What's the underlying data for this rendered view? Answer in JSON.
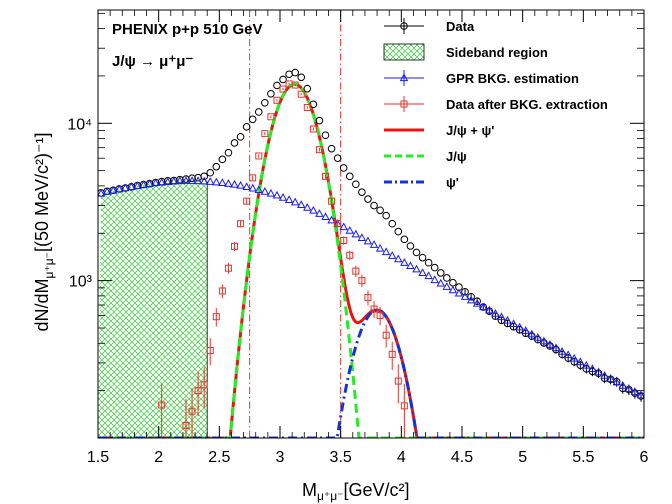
{
  "chart_data": {
    "type": "line",
    "title": "PHENIX p+p 510 GeV",
    "subtitle": "J/ψ → μ⁺μ⁻",
    "xlabel_main": "M",
    "xlabel_sub": "μ⁺μ⁻",
    "xlabel_unit": "[GeV/c²]",
    "ylabel_main": "dN/dM",
    "ylabel_sub": "μ⁺μ⁻",
    "ylabel_unit": "[(50 MeV/c²)⁻¹]",
    "xlim": [
      1.5,
      6.0
    ],
    "ylim_log10": [
      2.0,
      4.72
    ],
    "y_scale": "log",
    "grid": false,
    "legend_position": "top-right",
    "x_ticks": [
      1.5,
      2.0,
      2.5,
      3.0,
      3.5,
      4.0,
      4.5,
      5.0,
      5.5,
      6.0
    ],
    "x_tick_labels": [
      "1.5",
      "2",
      "2.5",
      "3",
      "3.5",
      "4",
      "4.5",
      "5",
      "5.5",
      "6"
    ],
    "y_ticks": [
      10000,
      1000
    ],
    "y_tick_labels": [
      "10⁴",
      "10³"
    ],
    "sideband_region": [
      1.5,
      2.4
    ],
    "vertical_lines": [
      2.75,
      3.5
    ],
    "colors": {
      "data": "#000000",
      "sideband": "#33cc33",
      "gpr": "#1a1aff",
      "extracted": "#e8332a",
      "total_fit": "#ee1111",
      "jpsi_fit": "#22ee22",
      "psi2s_fit": "#1133dd",
      "vlines": "#e8332a"
    },
    "legend": [
      {
        "key": "data",
        "label": "Data"
      },
      {
        "key": "sideband",
        "label": "Sideband region"
      },
      {
        "key": "gpr",
        "label": "GPR BKG. estimation"
      },
      {
        "key": "extracted",
        "label": "Data after BKG. extraction"
      },
      {
        "key": "total_fit",
        "label": "J/ψ + ψ'"
      },
      {
        "key": "jpsi_fit",
        "label": "J/ψ"
      },
      {
        "key": "psi2s_fit",
        "label": "ψ'"
      }
    ],
    "series": [
      {
        "key": "data",
        "name": "Data",
        "x": [
          1.525,
          1.575,
          1.625,
          1.675,
          1.725,
          1.775,
          1.825,
          1.875,
          1.925,
          1.975,
          2.025,
          2.075,
          2.125,
          2.175,
          2.225,
          2.275,
          2.325,
          2.375,
          2.425,
          2.475,
          2.525,
          2.575,
          2.625,
          2.675,
          2.725,
          2.775,
          2.825,
          2.875,
          2.925,
          2.975,
          3.025,
          3.075,
          3.125,
          3.175,
          3.225,
          3.275,
          3.325,
          3.375,
          3.425,
          3.475,
          3.525,
          3.575,
          3.625,
          3.675,
          3.725,
          3.775,
          3.825,
          3.875,
          3.925,
          3.975,
          4.025,
          4.075,
          4.125,
          4.175,
          4.225,
          4.275,
          4.325,
          4.375,
          4.425,
          4.475,
          4.525,
          4.575,
          4.625,
          4.675,
          4.725,
          4.775,
          4.825,
          4.875,
          4.925,
          4.975,
          5.025,
          5.075,
          5.125,
          5.175,
          5.225,
          5.275,
          5.325,
          5.375,
          5.425,
          5.475,
          5.525,
          5.575,
          5.625,
          5.675,
          5.725,
          5.775,
          5.825,
          5.875,
          5.925,
          5.975
        ],
        "y": [
          3610,
          3700,
          3750,
          3830,
          3880,
          3950,
          4020,
          4080,
          4130,
          4200,
          4260,
          4310,
          4330,
          4380,
          4420,
          4480,
          4510,
          4600,
          4850,
          5300,
          5900,
          6500,
          7500,
          8200,
          9500,
          10600,
          11800,
          13500,
          15400,
          17400,
          19000,
          20500,
          21000,
          19600,
          16600,
          13200,
          10400,
          8400,
          6900,
          6000,
          5200,
          4600,
          4100,
          3650,
          3300,
          3000,
          2800,
          2590,
          2300,
          2050,
          1830,
          1660,
          1510,
          1400,
          1300,
          1210,
          1120,
          1040,
          970,
          910,
          850,
          790,
          740,
          680,
          640,
          595,
          560,
          535,
          510,
          487,
          463,
          444,
          422,
          402,
          385,
          365,
          340,
          322,
          305,
          290,
          275,
          265,
          258,
          240,
          236,
          228,
          207,
          203,
          193,
          185
        ]
      },
      {
        "key": "gpr",
        "name": "GPR BKG. estimation",
        "x": [
          1.525,
          1.575,
          1.625,
          1.675,
          1.725,
          1.775,
          1.825,
          1.875,
          1.925,
          1.975,
          2.025,
          2.075,
          2.125,
          2.175,
          2.225,
          2.275,
          2.325,
          2.375,
          2.425,
          2.475,
          2.525,
          2.575,
          2.625,
          2.675,
          2.725,
          2.775,
          2.825,
          2.875,
          2.925,
          2.975,
          3.025,
          3.075,
          3.125,
          3.175,
          3.225,
          3.275,
          3.325,
          3.375,
          3.425,
          3.475,
          3.525,
          3.575,
          3.625,
          3.675,
          3.725,
          3.775,
          3.825,
          3.875,
          3.925,
          3.975,
          4.025,
          4.075,
          4.125,
          4.175,
          4.225,
          4.275,
          4.325,
          4.375,
          4.425,
          4.475,
          4.525,
          4.575,
          4.625,
          4.675,
          4.725,
          4.775,
          4.825,
          4.875,
          4.925,
          4.975,
          5.025,
          5.075,
          5.125,
          5.175,
          5.225,
          5.275,
          5.325,
          5.375,
          5.425,
          5.475,
          5.525,
          5.575,
          5.625,
          5.675,
          5.725,
          5.775,
          5.825,
          5.875,
          5.925,
          5.975
        ],
        "y": [
          3580,
          3670,
          3740,
          3810,
          3870,
          3940,
          4000,
          4060,
          4120,
          4170,
          4200,
          4240,
          4270,
          4300,
          4310,
          4310,
          4300,
          4280,
          4250,
          4220,
          4180,
          4130,
          4080,
          4020,
          3940,
          3860,
          3770,
          3680,
          3580,
          3480,
          3370,
          3260,
          3150,
          3030,
          2910,
          2790,
          2660,
          2540,
          2420,
          2300,
          2190,
          2080,
          1970,
          1870,
          1780,
          1690,
          1600,
          1520,
          1440,
          1370,
          1300,
          1240,
          1180,
          1120,
          1070,
          1010,
          960,
          915,
          870,
          830,
          790,
          750,
          715,
          680,
          648,
          617,
          587,
          558,
          531,
          505,
          480,
          456,
          434,
          412,
          392,
          373,
          354,
          337,
          320,
          304,
          289,
          275,
          262,
          249,
          237,
          226,
          215,
          205,
          196,
          187
        ]
      },
      {
        "key": "extracted",
        "name": "Data after BKG. extraction",
        "x": [
          2.025,
          2.225,
          2.275,
          2.325,
          2.375,
          2.425,
          2.475,
          2.525,
          2.575,
          2.625,
          2.675,
          2.725,
          2.775,
          2.825,
          2.875,
          2.925,
          2.975,
          3.025,
          3.075,
          3.125,
          3.175,
          3.225,
          3.275,
          3.325,
          3.375,
          3.425,
          3.475,
          3.525,
          3.575,
          3.625,
          3.675,
          3.725,
          3.775,
          3.825,
          3.875,
          3.925,
          3.975,
          4.025
        ],
        "y": [
          162,
          120,
          148,
          200,
          218,
          360,
          590,
          860,
          1200,
          1650,
          2300,
          3200,
          4500,
          6200,
          8600,
          11000,
          14000,
          16500,
          17800,
          17500,
          15300,
          12600,
          9200,
          6800,
          4600,
          3200,
          2300,
          1800,
          1450,
          1150,
          1000,
          780,
          660,
          600,
          450,
          340,
          230,
          160
        ]
      }
    ],
    "fits": {
      "jpsi_mean": 3.12,
      "jpsi_sigma": 0.165,
      "jpsi_peak": 17700,
      "jpsi_x_range": [
        2.22,
        3.76
      ],
      "psi2s_mean": 3.8,
      "psi2s_sigma": 0.17,
      "psi2s_peak": 650,
      "psi2s_x_range": [
        3.3,
        4.15
      ]
    }
  }
}
